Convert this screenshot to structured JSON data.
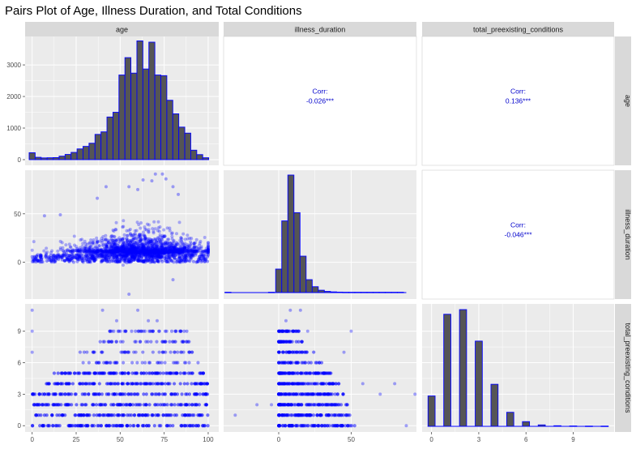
{
  "chart_data": {
    "type": "scatter",
    "title": "Pairs Plot of Age, Illness Duration, and Total Conditions",
    "variables": [
      "age",
      "illness_duration",
      "total_preexisting_conditions"
    ],
    "colors": {
      "bar_fill": "#555555",
      "bar_outline": "#0000ff",
      "point": "#0000ff",
      "corr_text": "#0000cc",
      "panel_bg": "#ebebeb",
      "strip_bg": "#d9d9d9"
    },
    "axes": {
      "age": {
        "range": [
          -4,
          106
        ],
        "ticks": [
          0,
          25,
          50,
          75,
          100
        ]
      },
      "illness_duration": {
        "range": [
          -38,
          95
        ],
        "ticks": [
          0,
          50
        ]
      },
      "total_preexisting_conditions": {
        "range": [
          -0.6,
          11.6
        ],
        "ticks": [
          0,
          3,
          6,
          9
        ]
      }
    },
    "age_histogram": {
      "bin_width": 3.4,
      "y_ticks": [
        0,
        1000,
        2000,
        3000
      ],
      "y_range": [
        -180,
        3900
      ],
      "bins": [
        {
          "x": 0,
          "count": 220
        },
        {
          "x": 3.4,
          "count": 75
        },
        {
          "x": 6.8,
          "count": 55
        },
        {
          "x": 10.2,
          "count": 60
        },
        {
          "x": 13.6,
          "count": 65
        },
        {
          "x": 17,
          "count": 110
        },
        {
          "x": 20.4,
          "count": 165
        },
        {
          "x": 23.8,
          "count": 230
        },
        {
          "x": 27.2,
          "count": 340
        },
        {
          "x": 30.6,
          "count": 420
        },
        {
          "x": 34,
          "count": 520
        },
        {
          "x": 37.4,
          "count": 800
        },
        {
          "x": 40.8,
          "count": 880
        },
        {
          "x": 44.2,
          "count": 1350
        },
        {
          "x": 47.6,
          "count": 1500
        },
        {
          "x": 51,
          "count": 2680
        },
        {
          "x": 54.4,
          "count": 3230
        },
        {
          "x": 57.8,
          "count": 2740
        },
        {
          "x": 61.2,
          "count": 3760
        },
        {
          "x": 64.6,
          "count": 2870
        },
        {
          "x": 68,
          "count": 3720
        },
        {
          "x": 71.4,
          "count": 2680
        },
        {
          "x": 74.8,
          "count": 2660
        },
        {
          "x": 78.2,
          "count": 1880
        },
        {
          "x": 81.6,
          "count": 1450
        },
        {
          "x": 85,
          "count": 1030
        },
        {
          "x": 88.4,
          "count": 840
        },
        {
          "x": 91.8,
          "count": 300
        },
        {
          "x": 95.2,
          "count": 160
        },
        {
          "x": 98.6,
          "count": 60
        }
      ]
    },
    "illness_duration_histogram": {
      "bin_width": 4.2,
      "relative_counts": [
        {
          "x": -35,
          "count": 0.3
        },
        {
          "x": -5,
          "count": 0.3
        },
        {
          "x": 0,
          "count": 20
        },
        {
          "x": 4.2,
          "count": 61
        },
        {
          "x": 8.4,
          "count": 100
        },
        {
          "x": 12.6,
          "count": 68
        },
        {
          "x": 16.8,
          "count": 31
        },
        {
          "x": 21,
          "count": 11
        },
        {
          "x": 25.2,
          "count": 5
        },
        {
          "x": 29.4,
          "count": 2
        },
        {
          "x": 33.6,
          "count": 1
        },
        {
          "x": 37.8,
          "count": 0.6
        },
        {
          "x": 42,
          "count": 0.4
        },
        {
          "x": 46.2,
          "count": 0.3
        },
        {
          "x": 50.4,
          "count": 0.3
        },
        {
          "x": 54.6,
          "count": 0.3
        },
        {
          "x": 58.8,
          "count": 0.3
        },
        {
          "x": 63,
          "count": 0.3
        },
        {
          "x": 67.2,
          "count": 0.3
        },
        {
          "x": 71.4,
          "count": 0.3
        },
        {
          "x": 75.6,
          "count": 0.3
        },
        {
          "x": 79.8,
          "count": 0.3
        },
        {
          "x": 84,
          "count": 0.3
        }
      ]
    },
    "conditions_histogram": {
      "bin_width": 0.45,
      "relative_counts": [
        {
          "x": 0,
          "count": 26
        },
        {
          "x": 1,
          "count": 96
        },
        {
          "x": 2,
          "count": 100
        },
        {
          "x": 3,
          "count": 73
        },
        {
          "x": 4,
          "count": 36
        },
        {
          "x": 5,
          "count": 12
        },
        {
          "x": 6,
          "count": 4
        },
        {
          "x": 7,
          "count": 1.2
        },
        {
          "x": 8,
          "count": 0.5
        },
        {
          "x": 9,
          "count": 0.3
        },
        {
          "x": 10,
          "count": 0.2
        },
        {
          "x": 11,
          "count": 0.2
        }
      ]
    },
    "correlations": [
      {
        "row": "age",
        "col": "illness_duration",
        "label": "Corr:",
        "value": "-0.026***"
      },
      {
        "row": "age",
        "col": "total_preexisting_conditions",
        "label": "Corr:",
        "value": "0.136***"
      },
      {
        "row": "illness_duration",
        "col": "total_preexisting_conditions",
        "label": "Corr:",
        "value": "-0.046***"
      }
    ],
    "scatter_age_vs_duration": {
      "density_center": {
        "age": 62,
        "duration": 12
      },
      "duration_spread": 10,
      "outliers": [
        {
          "age": 70,
          "duration": 91
        },
        {
          "age": 74,
          "duration": 91
        },
        {
          "age": 76,
          "duration": 86
        },
        {
          "age": 63,
          "duration": 85
        },
        {
          "age": 68,
          "duration": 84
        },
        {
          "age": 80,
          "duration": 78
        },
        {
          "age": 42,
          "duration": 78
        },
        {
          "age": 55,
          "duration": 78
        },
        {
          "age": 60,
          "duration": 75
        },
        {
          "age": 83,
          "duration": 70
        },
        {
          "age": 37,
          "duration": 66
        },
        {
          "age": 7,
          "duration": 48
        },
        {
          "age": 16,
          "duration": 49
        },
        {
          "age": 55,
          "duration": -33
        },
        {
          "age": 80,
          "duration": -18
        }
      ]
    },
    "scatter_age_vs_conditions": {
      "dense_levels": [
        0,
        1,
        2,
        3,
        4,
        5
      ],
      "sparse_levels": [
        6,
        7,
        8,
        9,
        10,
        11
      ],
      "level_age_ranges": [
        {
          "level": 0,
          "min": 0,
          "max": 100
        },
        {
          "level": 1,
          "min": 0,
          "max": 100
        },
        {
          "level": 2,
          "min": 0,
          "max": 100
        },
        {
          "level": 3,
          "min": 0,
          "max": 100
        },
        {
          "level": 4,
          "min": 8,
          "max": 100
        },
        {
          "level": 5,
          "min": 12,
          "max": 98
        },
        {
          "level": 6,
          "min": 24,
          "max": 95
        },
        {
          "level": 7,
          "min": 26,
          "max": 92
        },
        {
          "level": 8,
          "min": 38,
          "max": 90
        },
        {
          "level": 9,
          "min": 43,
          "max": 88
        }
      ],
      "outliers": [
        {
          "age": 0,
          "level": 7
        },
        {
          "age": 0,
          "level": 11
        },
        {
          "age": 0,
          "level": 9
        },
        {
          "age": 40,
          "level": 11
        },
        {
          "age": 60,
          "level": 11
        },
        {
          "age": 48,
          "level": 10
        },
        {
          "age": 71,
          "level": 10
        },
        {
          "age": 66,
          "level": 10
        },
        {
          "age": 53,
          "level": 9
        }
      ]
    },
    "scatter_duration_vs_conditions": {
      "dense_range": [
        0,
        32
      ],
      "outliers": [
        {
          "duration": -30,
          "level": 1
        },
        {
          "duration": -15,
          "level": 2
        },
        {
          "duration": -5,
          "level": 2
        },
        {
          "duration": 8,
          "level": 11
        },
        {
          "duration": 15,
          "level": 11
        },
        {
          "duration": 5,
          "level": 10
        },
        {
          "duration": 20,
          "level": 9
        },
        {
          "duration": 50,
          "level": 9
        },
        {
          "duration": 58,
          "level": 4
        },
        {
          "duration": 70,
          "level": 3
        },
        {
          "duration": 88,
          "level": 0
        },
        {
          "duration": 94,
          "level": 3
        },
        {
          "duration": 80,
          "level": 4
        },
        {
          "duration": 45,
          "level": 7
        }
      ]
    }
  }
}
